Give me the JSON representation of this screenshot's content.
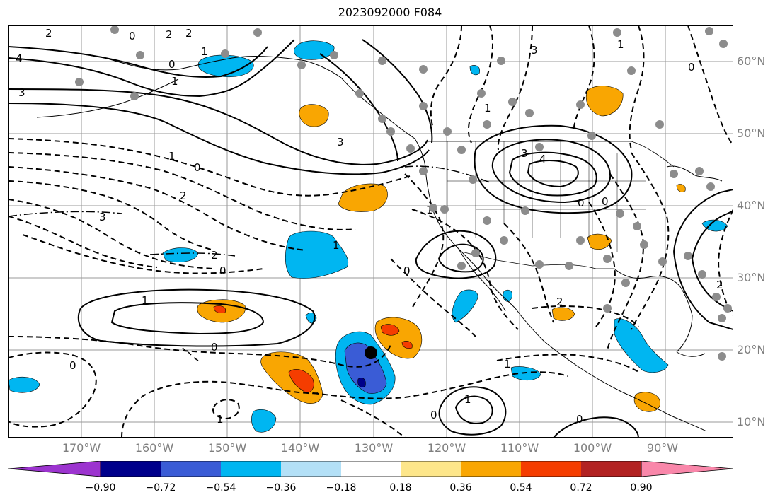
{
  "title": "2023092000 F084",
  "lat_labels": [
    "60°N",
    "50°N",
    "40°N",
    "30°N",
    "20°N",
    "10°N"
  ],
  "lon_labels": [
    "170°W",
    "160°W",
    "150°W",
    "140°W",
    "130°W",
    "120°W",
    "110°W",
    "100°W",
    "90°W"
  ],
  "colorbar": {
    "ticks": [
      "−0.90",
      "−0.72",
      "−0.54",
      "−0.36",
      "−0.18",
      "0.18",
      "0.36",
      "0.54",
      "0.72",
      "0.90"
    ],
    "colors": [
      "#9c34cf",
      "#00008b",
      "#3a5cd6",
      "#00b6f1",
      "#b3e0f7",
      "#ffffff",
      "#fde68a",
      "#f9a602",
      "#f53d00",
      "#b22222",
      "#f987aa"
    ]
  },
  "contour_labels": [
    "2",
    "0",
    "2",
    "2",
    "1",
    "0",
    "4",
    "3",
    "1",
    "0",
    "1",
    "2",
    "3",
    "0",
    "1",
    "3",
    "3",
    "4",
    "0",
    "0",
    "0",
    "2",
    "3",
    "1",
    "1",
    "2",
    "0",
    "1",
    "1",
    "0",
    "0",
    "1",
    "2",
    "1",
    "0",
    "1",
    "0"
  ],
  "colors": {
    "solid_contour": "#000000",
    "grid": "#9a9a9a",
    "station_dot": "#8c8c8c",
    "storm_center": "#000000"
  }
}
